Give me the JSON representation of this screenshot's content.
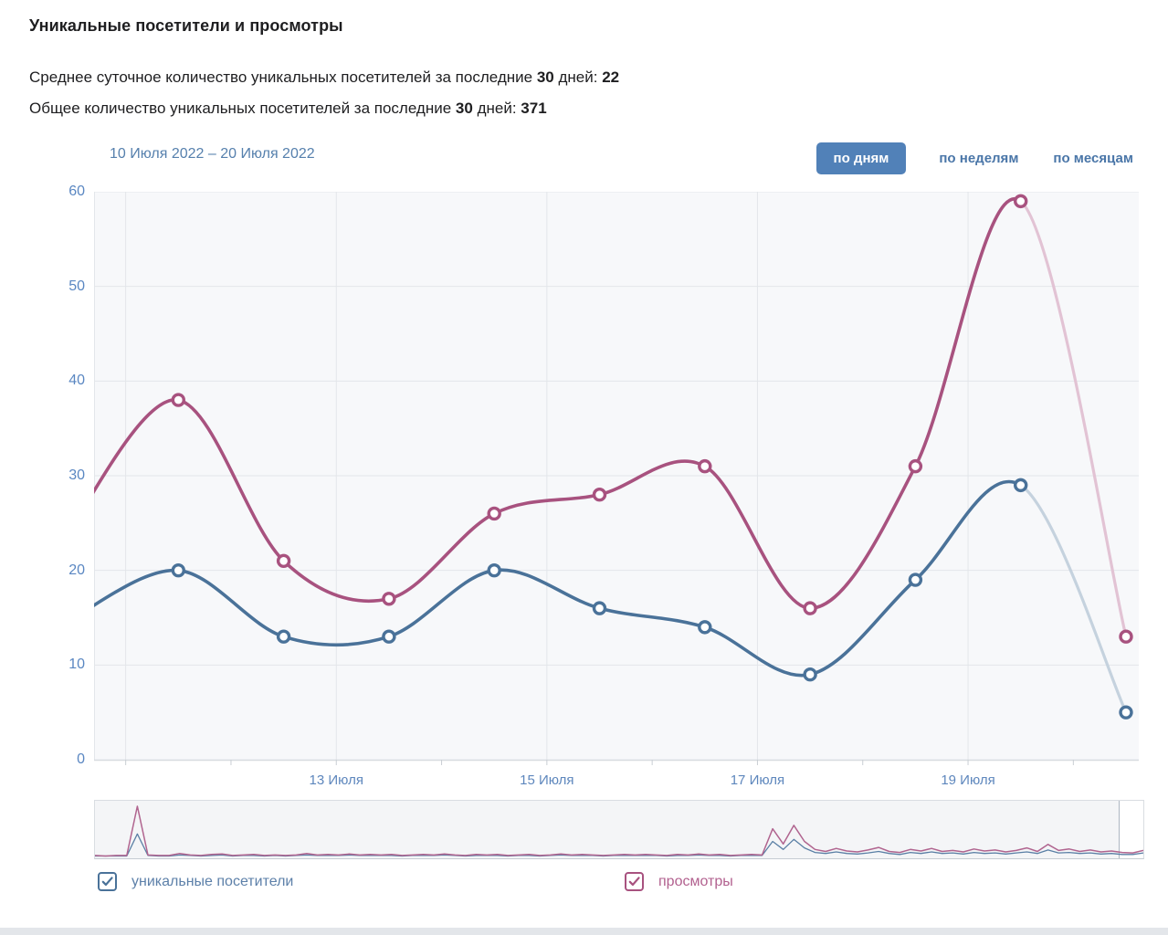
{
  "page": {
    "title": "Уникальные посетители и просмотры",
    "summary_lines": [
      {
        "name": "avg-daily-visitors",
        "segments": [
          {
            "t": "Среднее суточное количество уникальных посетителей за последние ",
            "b": false
          },
          {
            "t": "30",
            "b": true
          },
          {
            "t": " дней: ",
            "b": false
          },
          {
            "t": "22",
            "b": true
          }
        ]
      },
      {
        "name": "total-visitors",
        "segments": [
          {
            "t": "Общее количество уникальных посетителей за последние ",
            "b": false
          },
          {
            "t": "30",
            "b": true
          },
          {
            "t": " дней: ",
            "b": false
          },
          {
            "t": "371",
            "b": true
          }
        ]
      }
    ]
  },
  "chart": {
    "date_range": "10 Июля 2022 – 20 Июля 2022",
    "tabs": [
      {
        "label": "по дням",
        "active": true
      },
      {
        "label": "по неделям",
        "active": false
      },
      {
        "label": "по месяцам",
        "active": false
      }
    ]
  },
  "chart_data": {
    "type": "line",
    "title": "Уникальные посетители и просмотры",
    "x_days": [
      10,
      11,
      12,
      13,
      14,
      15,
      16,
      17,
      18,
      19,
      20
    ],
    "x_month": "Июля 2022",
    "series": [
      {
        "name": "уникальные посетители",
        "color": "#4a7299",
        "faded_color": "#c5d2de",
        "values": [
          15,
          20,
          13,
          13,
          20,
          16,
          14,
          9,
          19,
          29,
          5
        ]
      },
      {
        "name": "просмотры",
        "color": "#a8527f",
        "faded_color": "#e2c3d4",
        "values": [
          25,
          38,
          21,
          17,
          26,
          28,
          31,
          16,
          31,
          59,
          13
        ]
      }
    ],
    "last_segment_faded": true,
    "ylim": [
      0,
      60
    ],
    "yticks": [
      0,
      10,
      20,
      30,
      40,
      50,
      60
    ],
    "xticks": [
      {
        "label": "13 Июля",
        "day": 13
      },
      {
        "label": "15 Июля",
        "day": 15
      },
      {
        "label": "17 Июля",
        "day": 17
      },
      {
        "label": "19 Июля",
        "day": 19
      }
    ],
    "gridline_days": [
      11,
      13,
      15,
      17,
      19
    ],
    "grid": true,
    "legend_position": "bottom",
    "minimap_spark": {
      "views": [
        2,
        1,
        2,
        2,
        100,
        3,
        2,
        2,
        6,
        3,
        2,
        4,
        5,
        2,
        3,
        4,
        2,
        3,
        2,
        3,
        6,
        3,
        4,
        3,
        5,
        3,
        4,
        3,
        4,
        2,
        3,
        4,
        3,
        5,
        3,
        2,
        4,
        3,
        4,
        2,
        3,
        4,
        2,
        3,
        5,
        3,
        4,
        3,
        2,
        3,
        4,
        3,
        4,
        3,
        2,
        4,
        3,
        5,
        3,
        4,
        2,
        3,
        4,
        3,
        55,
        25,
        62,
        30,
        14,
        10,
        16,
        11,
        9,
        13,
        18,
        10,
        8,
        14,
        11,
        16,
        10,
        12,
        9,
        15,
        11,
        13,
        9,
        12,
        17,
        10,
        24,
        12,
        15,
        10,
        13,
        9,
        11,
        8,
        7,
        12
      ],
      "visitors": [
        1,
        1,
        1,
        1,
        45,
        2,
        1,
        1,
        3,
        2,
        1,
        2,
        3,
        1,
        2,
        2,
        1,
        2,
        1,
        2,
        3,
        2,
        2,
        2,
        3,
        2,
        2,
        2,
        2,
        1,
        2,
        2,
        2,
        3,
        2,
        1,
        2,
        2,
        2,
        1,
        2,
        2,
        1,
        2,
        3,
        2,
        2,
        2,
        1,
        2,
        2,
        2,
        2,
        2,
        1,
        2,
        2,
        3,
        2,
        2,
        1,
        2,
        2,
        2,
        30,
        14,
        34,
        17,
        8,
        6,
        9,
        6,
        5,
        7,
        10,
        6,
        4,
        8,
        6,
        9,
        6,
        7,
        5,
        8,
        6,
        7,
        5,
        7,
        9,
        6,
        13,
        7,
        8,
        6,
        7,
        5,
        6,
        4,
        4,
        7
      ]
    }
  },
  "legend": [
    {
      "label": "уникальные посетители",
      "color": "#4a7299",
      "checked": true
    },
    {
      "label": "просмотры",
      "color": "#a8527f",
      "checked": true
    }
  ],
  "colors": {
    "accent_blue": "#5181b8",
    "link_blue": "#4a76a8",
    "axis_label_blue": "#5a87c2",
    "xaxis_label_blue": "#5e87bd",
    "grid": "#e3e6ea",
    "plot_bg": "#f7f8fa",
    "axis_line": "#d7dbdf",
    "tick": "#c9ced4",
    "legend_visitors_text": "#5d80a9",
    "legend_views_text": "#b2618f"
  }
}
